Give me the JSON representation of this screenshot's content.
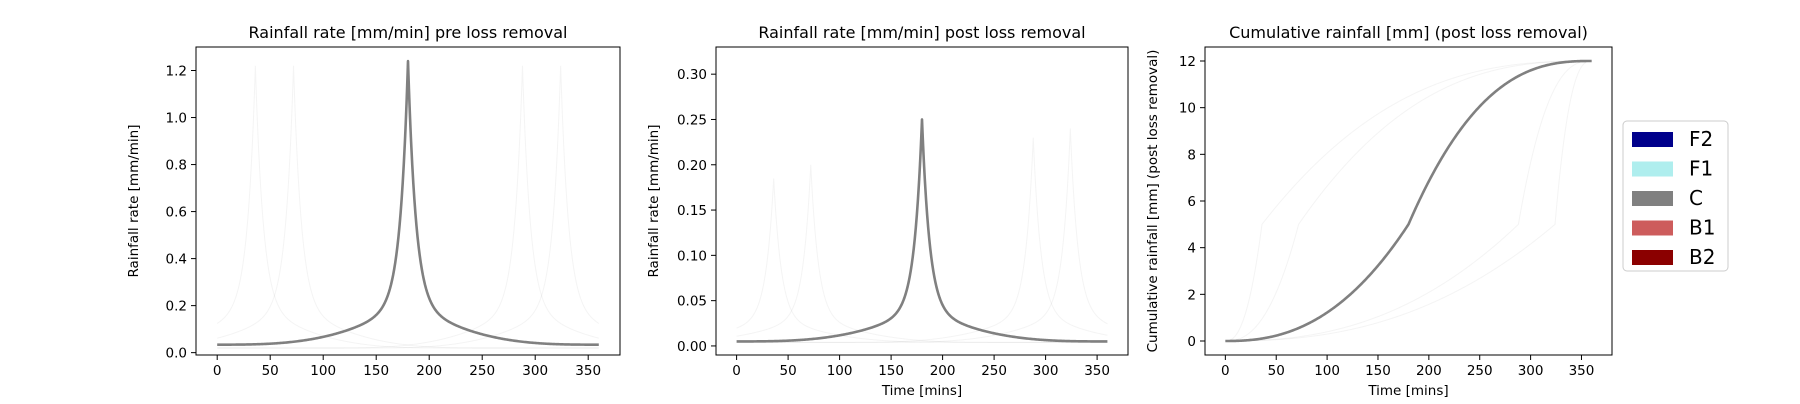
{
  "chart_data": [
    {
      "type": "line",
      "title": "Rainfall rate [mm/min] pre loss removal",
      "xlabel": "",
      "ylabel": "Rainfall rate [mm/min]",
      "xlim": [
        -20,
        380
      ],
      "ylim": [
        -0.01,
        1.3
      ],
      "xticks": [
        0,
        50,
        100,
        150,
        200,
        250,
        300,
        350
      ],
      "yticks": [
        0.0,
        0.2,
        0.4,
        0.6,
        0.8,
        1.0,
        1.2
      ],
      "ytick_labels": [
        "0.0",
        "0.2",
        "0.4",
        "0.6",
        "0.8",
        "1.0",
        "1.2"
      ],
      "grid": false,
      "series": [
        {
          "profile": "C",
          "color": "#808080",
          "curve": "rate",
          "peak_time": 180,
          "base": 0.034,
          "peak": 1.24,
          "start": 0,
          "end": 360
        }
      ],
      "faint_series": [
        {
          "color": "#808080",
          "curve": "rate",
          "peak_time": 36,
          "base": 0.02,
          "peak": 1.22,
          "start": 0,
          "end": 360
        },
        {
          "color": "#808080",
          "curve": "rate",
          "peak_time": 72,
          "base": 0.02,
          "peak": 1.22,
          "start": 0,
          "end": 360
        },
        {
          "color": "#808080",
          "curve": "rate",
          "peak_time": 288,
          "base": 0.02,
          "peak": 1.22,
          "start": 0,
          "end": 360
        },
        {
          "color": "#808080",
          "curve": "rate",
          "peak_time": 324,
          "base": 0.02,
          "peak": 1.22,
          "start": 0,
          "end": 360
        }
      ]
    },
    {
      "type": "line",
      "title": "Rainfall rate [mm/min] post loss removal",
      "xlabel": "Time [mins]",
      "ylabel": "Rainfall rate [mm/min]",
      "xlim": [
        -20,
        380
      ],
      "ylim": [
        -0.01,
        0.33
      ],
      "xticks": [
        0,
        50,
        100,
        150,
        200,
        250,
        300,
        350
      ],
      "yticks": [
        0.0,
        0.05,
        0.1,
        0.15,
        0.2,
        0.25,
        0.3
      ],
      "ytick_labels": [
        "0.00",
        "0.05",
        "0.10",
        "0.15",
        "0.20",
        "0.25",
        "0.30"
      ],
      "grid": false,
      "series": [
        {
          "profile": "C",
          "color": "#808080",
          "curve": "rate",
          "peak_time": 180,
          "base": 0.005,
          "peak": 0.25,
          "start": 0,
          "end": 360
        }
      ],
      "faint_series": [
        {
          "color": "#808080",
          "curve": "rate",
          "peak_time": 36,
          "base": 0.004,
          "peak": 0.185,
          "start": 0,
          "end": 360
        },
        {
          "color": "#808080",
          "curve": "rate",
          "peak_time": 72,
          "base": 0.004,
          "peak": 0.2,
          "start": 0,
          "end": 360
        },
        {
          "color": "#808080",
          "curve": "rate",
          "peak_time": 288,
          "base": 0.004,
          "peak": 0.23,
          "start": 0,
          "end": 360
        },
        {
          "color": "#808080",
          "curve": "rate",
          "peak_time": 324,
          "base": 0.004,
          "peak": 0.24,
          "start": 0,
          "end": 360
        }
      ]
    },
    {
      "type": "line",
      "title": "Cumulative rainfall [mm] (post loss removal)",
      "xlabel": "Time [mins]",
      "ylabel": "Cumulative rainfall [mm] (post loss removal)",
      "xlim": [
        -20,
        380
      ],
      "ylim": [
        -0.6,
        12.6
      ],
      "xticks": [
        0,
        50,
        100,
        150,
        200,
        250,
        300,
        350
      ],
      "yticks": [
        0,
        2,
        4,
        6,
        8,
        10,
        12
      ],
      "ytick_labels": [
        "0",
        "2",
        "4",
        "6",
        "8",
        "10",
        "12"
      ],
      "grid": false,
      "series": [
        {
          "profile": "C",
          "color": "#808080",
          "curve": "cumulative",
          "peak_time": 180,
          "total": 12,
          "start": 0,
          "end": 360
        }
      ],
      "faint_series": [
        {
          "color": "#808080",
          "curve": "cumulative",
          "peak_time": 36,
          "total": 12,
          "start": 0,
          "end": 360
        },
        {
          "color": "#808080",
          "curve": "cumulative",
          "peak_time": 72,
          "total": 12,
          "start": 0,
          "end": 360
        },
        {
          "color": "#808080",
          "curve": "cumulative",
          "peak_time": 288,
          "total": 12,
          "start": 0,
          "end": 360
        },
        {
          "color": "#808080",
          "curve": "cumulative",
          "peak_time": 324,
          "total": 12,
          "start": 0,
          "end": 360
        }
      ]
    }
  ],
  "legend": {
    "placement": "right",
    "items": [
      {
        "label": "F2",
        "color": "#00008b"
      },
      {
        "label": "F1",
        "color": "#afeeee"
      },
      {
        "label": "C",
        "color": "#808080"
      },
      {
        "label": "B1",
        "color": "#cd5c5c"
      },
      {
        "label": "B2",
        "color": "#8b0000"
      }
    ]
  }
}
